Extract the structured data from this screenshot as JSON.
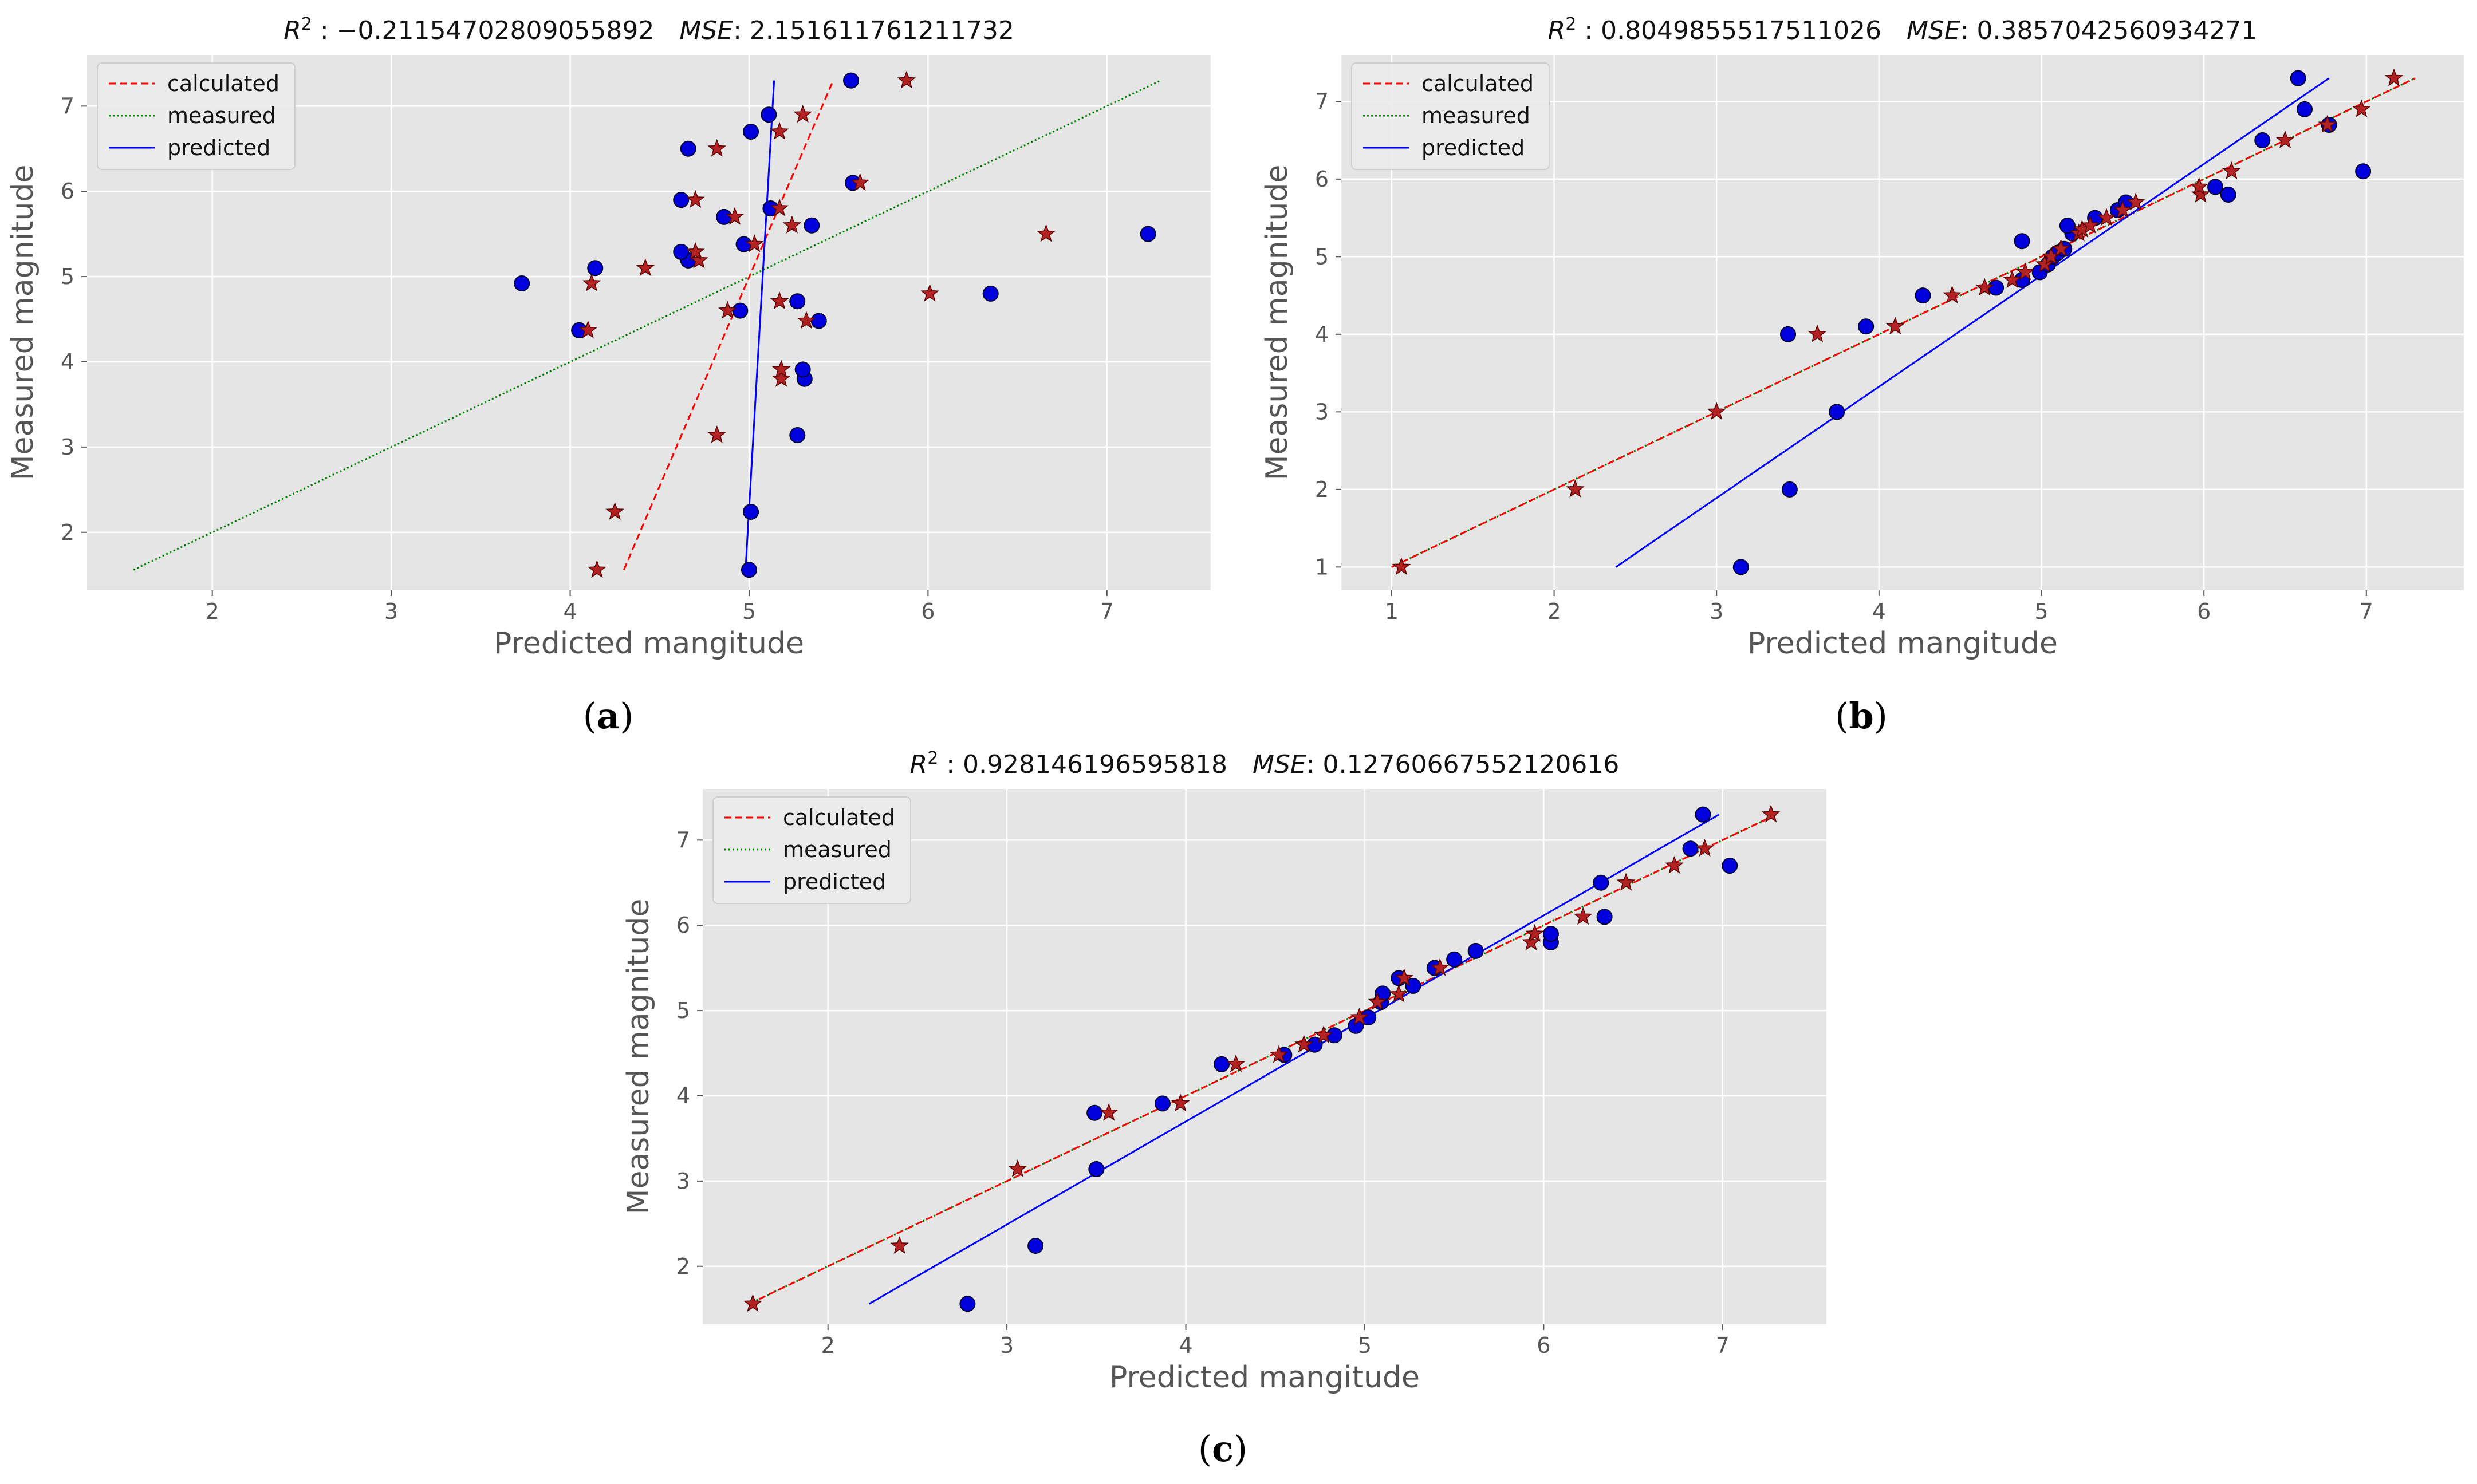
{
  "colors": {
    "background": "#ffffff",
    "plot_bg": "#e5e5e5",
    "grid": "#ffffff",
    "tick_text": "#555555",
    "calculated": "#ff0000",
    "measured": "#008000",
    "predicted": "#0000ff",
    "star_fill": "#b22222",
    "star_edge": "#5a0000",
    "dot_fill": "#0000dd",
    "dot_edge": "#000033"
  },
  "chart_data": [
    {
      "id": "a",
      "type": "scatter",
      "caption": "(a)",
      "title_prefix": "R",
      "title_sup": "2",
      "title_r2": " : −0.21154702809055892",
      "title_mse_label": "MSE",
      "title_mse": ": 2.151611761211732",
      "xlabel": "Predicted mangitude",
      "ylabel": "Measured magnitude",
      "xlim": [
        1.3,
        7.58
      ],
      "ylim": [
        1.32,
        7.6
      ],
      "xticks": [
        2,
        3,
        4,
        5,
        6,
        7
      ],
      "yticks": [
        2,
        3,
        4,
        5,
        6,
        7
      ],
      "legend": [
        "calculated",
        "measured",
        "predicted"
      ],
      "legend_position": "top-left",
      "lines": {
        "calculated": [
          [
            4.3,
            1.56
          ],
          [
            5.47,
            7.3
          ]
        ],
        "measured": [
          [
            1.56,
            1.56
          ],
          [
            7.3,
            7.3
          ]
        ],
        "predicted": [
          [
            4.98,
            1.56
          ],
          [
            5.14,
            7.3
          ]
        ]
      },
      "stars": [
        [
          4.15,
          1.56
        ],
        [
          4.25,
          2.24
        ],
        [
          4.82,
          3.14
        ],
        [
          5.18,
          3.8
        ],
        [
          5.18,
          3.91
        ],
        [
          4.1,
          4.37
        ],
        [
          4.88,
          4.6
        ],
        [
          5.32,
          4.48
        ],
        [
          5.17,
          4.71
        ],
        [
          4.12,
          4.92
        ],
        [
          4.42,
          5.1
        ],
        [
          4.72,
          5.19
        ],
        [
          4.7,
          5.29
        ],
        [
          5.03,
          5.38
        ],
        [
          5.24,
          5.6
        ],
        [
          4.92,
          5.7
        ],
        [
          5.17,
          5.8
        ],
        [
          4.7,
          5.9
        ],
        [
          5.62,
          6.1
        ],
        [
          4.82,
          6.5
        ],
        [
          5.17,
          6.7
        ],
        [
          5.3,
          6.9
        ],
        [
          5.88,
          7.3
        ],
        [
          6.66,
          5.5
        ],
        [
          6.01,
          4.8
        ]
      ],
      "dots": [
        [
          5.0,
          1.56
        ],
        [
          5.01,
          2.24
        ],
        [
          5.27,
          3.14
        ],
        [
          5.31,
          3.8
        ],
        [
          5.3,
          3.91
        ],
        [
          4.05,
          4.37
        ],
        [
          4.95,
          4.6
        ],
        [
          5.39,
          4.48
        ],
        [
          5.27,
          4.71
        ],
        [
          3.73,
          4.92
        ],
        [
          4.14,
          5.1
        ],
        [
          4.66,
          5.19
        ],
        [
          4.62,
          5.29
        ],
        [
          4.97,
          5.38
        ],
        [
          5.35,
          5.6
        ],
        [
          4.86,
          5.7
        ],
        [
          5.12,
          5.8
        ],
        [
          4.62,
          5.9
        ],
        [
          5.58,
          6.1
        ],
        [
          4.66,
          6.5
        ],
        [
          5.01,
          6.7
        ],
        [
          5.11,
          6.9
        ],
        [
          5.57,
          7.3
        ],
        [
          7.23,
          5.5
        ],
        [
          6.35,
          4.8
        ]
      ]
    },
    {
      "id": "b",
      "type": "scatter",
      "caption": "(b)",
      "title_prefix": "R",
      "title_sup": "2",
      "title_r2": " : 0.8049855517511026",
      "title_mse_label": "MSE",
      "title_mse": ": 0.3857042560934271",
      "xlabel": "Predicted mangitude",
      "ylabel": "Measured magnitude",
      "xlim": [
        0.69,
        7.6
      ],
      "ylim": [
        0.7,
        7.6
      ],
      "xticks": [
        1,
        2,
        3,
        4,
        5,
        6,
        7
      ],
      "yticks": [
        1,
        2,
        3,
        4,
        5,
        6,
        7
      ],
      "legend": [
        "calculated",
        "measured",
        "predicted"
      ],
      "legend_position": "top-left",
      "lines": {
        "calculated": [
          [
            1.0,
            1.0
          ],
          [
            7.3,
            7.3
          ]
        ],
        "measured": [
          [
            1.0,
            1.0
          ],
          [
            7.3,
            7.3
          ]
        ],
        "predicted": [
          [
            2.38,
            1.0
          ],
          [
            6.77,
            7.3
          ]
        ]
      },
      "stars": [
        [
          1.06,
          1.0
        ],
        [
          2.13,
          2.0
        ],
        [
          3.0,
          3.0
        ],
        [
          3.62,
          4.0
        ],
        [
          4.1,
          4.1
        ],
        [
          4.45,
          4.5
        ],
        [
          4.65,
          4.6
        ],
        [
          4.82,
          4.7
        ],
        [
          4.9,
          4.8
        ],
        [
          5.02,
          4.9
        ],
        [
          5.06,
          5.0
        ],
        [
          5.12,
          5.1
        ],
        [
          5.23,
          5.3
        ],
        [
          5.25,
          5.35
        ],
        [
          5.3,
          5.4
        ],
        [
          5.4,
          5.5
        ],
        [
          5.5,
          5.6
        ],
        [
          5.58,
          5.7
        ],
        [
          5.98,
          5.8
        ],
        [
          5.97,
          5.9
        ],
        [
          6.17,
          6.1
        ],
        [
          6.5,
          6.5
        ],
        [
          6.76,
          6.7
        ],
        [
          6.97,
          6.9
        ],
        [
          7.17,
          7.3
        ]
      ],
      "dots": [
        [
          3.15,
          1.0
        ],
        [
          3.45,
          2.0
        ],
        [
          3.74,
          3.0
        ],
        [
          3.44,
          4.0
        ],
        [
          3.92,
          4.1
        ],
        [
          4.27,
          4.5
        ],
        [
          4.72,
          4.6
        ],
        [
          4.88,
          4.7
        ],
        [
          4.99,
          4.8
        ],
        [
          5.04,
          4.9
        ],
        [
          5.07,
          5.0
        ],
        [
          5.1,
          5.05
        ],
        [
          5.14,
          5.1
        ],
        [
          5.19,
          5.3
        ],
        [
          5.16,
          5.4
        ],
        [
          5.33,
          5.5
        ],
        [
          5.47,
          5.6
        ],
        [
          5.52,
          5.7
        ],
        [
          4.88,
          5.2
        ],
        [
          6.15,
          5.8
        ],
        [
          6.07,
          5.9
        ],
        [
          6.98,
          6.1
        ],
        [
          6.36,
          6.5
        ],
        [
          6.77,
          6.7
        ],
        [
          6.62,
          6.9
        ],
        [
          6.58,
          7.3
        ]
      ]
    },
    {
      "id": "c",
      "type": "scatter",
      "caption": "(c)",
      "title_prefix": "R",
      "title_sup": "2",
      "title_r2": " : 0.928146196595818",
      "title_mse_label": "MSE",
      "title_mse": ": 0.12760667552120616",
      "xlabel": "Predicted mangitude",
      "ylabel": "Measured magnitude",
      "xlim": [
        1.3,
        7.58
      ],
      "ylim": [
        1.32,
        7.6
      ],
      "xticks": [
        2,
        3,
        4,
        5,
        6,
        7
      ],
      "yticks": [
        2,
        3,
        4,
        5,
        6,
        7
      ],
      "legend": [
        "calculated",
        "measured",
        "predicted"
      ],
      "legend_position": "top-left",
      "lines": {
        "calculated": [
          [
            1.56,
            1.56
          ],
          [
            7.3,
            7.3
          ]
        ],
        "measured": [
          [
            1.56,
            1.56
          ],
          [
            7.3,
            7.3
          ]
        ],
        "predicted": [
          [
            2.23,
            1.56
          ],
          [
            6.98,
            7.3
          ]
        ]
      },
      "stars": [
        [
          1.58,
          1.56
        ],
        [
          2.4,
          2.24
        ],
        [
          3.06,
          3.14
        ],
        [
          3.57,
          3.8
        ],
        [
          3.97,
          3.91
        ],
        [
          4.28,
          4.37
        ],
        [
          4.52,
          4.48
        ],
        [
          4.66,
          4.6
        ],
        [
          4.77,
          4.71
        ],
        [
          4.97,
          4.92
        ],
        [
          5.07,
          5.1
        ],
        [
          5.19,
          5.19
        ],
        [
          5.22,
          5.38
        ],
        [
          5.42,
          5.5
        ],
        [
          5.93,
          5.8
        ],
        [
          5.95,
          5.9
        ],
        [
          6.22,
          6.1
        ],
        [
          6.46,
          6.5
        ],
        [
          6.73,
          6.7
        ],
        [
          6.9,
          6.9
        ],
        [
          7.27,
          7.3
        ]
      ],
      "dots": [
        [
          2.78,
          1.56
        ],
        [
          3.16,
          2.24
        ],
        [
          3.5,
          3.14
        ],
        [
          3.49,
          3.8
        ],
        [
          3.87,
          3.91
        ],
        [
          4.2,
          4.37
        ],
        [
          4.55,
          4.48
        ],
        [
          4.72,
          4.6
        ],
        [
          4.83,
          4.71
        ],
        [
          4.95,
          4.82
        ],
        [
          5.02,
          4.92
        ],
        [
          5.09,
          5.1
        ],
        [
          5.1,
          5.2
        ],
        [
          5.27,
          5.29
        ],
        [
          5.19,
          5.38
        ],
        [
          5.39,
          5.5
        ],
        [
          5.5,
          5.6
        ],
        [
          5.62,
          5.7
        ],
        [
          6.04,
          5.8
        ],
        [
          6.04,
          5.9
        ],
        [
          6.34,
          6.1
        ],
        [
          6.32,
          6.5
        ],
        [
          7.04,
          6.7
        ],
        [
          6.82,
          6.9
        ],
        [
          6.89,
          7.3
        ]
      ]
    }
  ]
}
